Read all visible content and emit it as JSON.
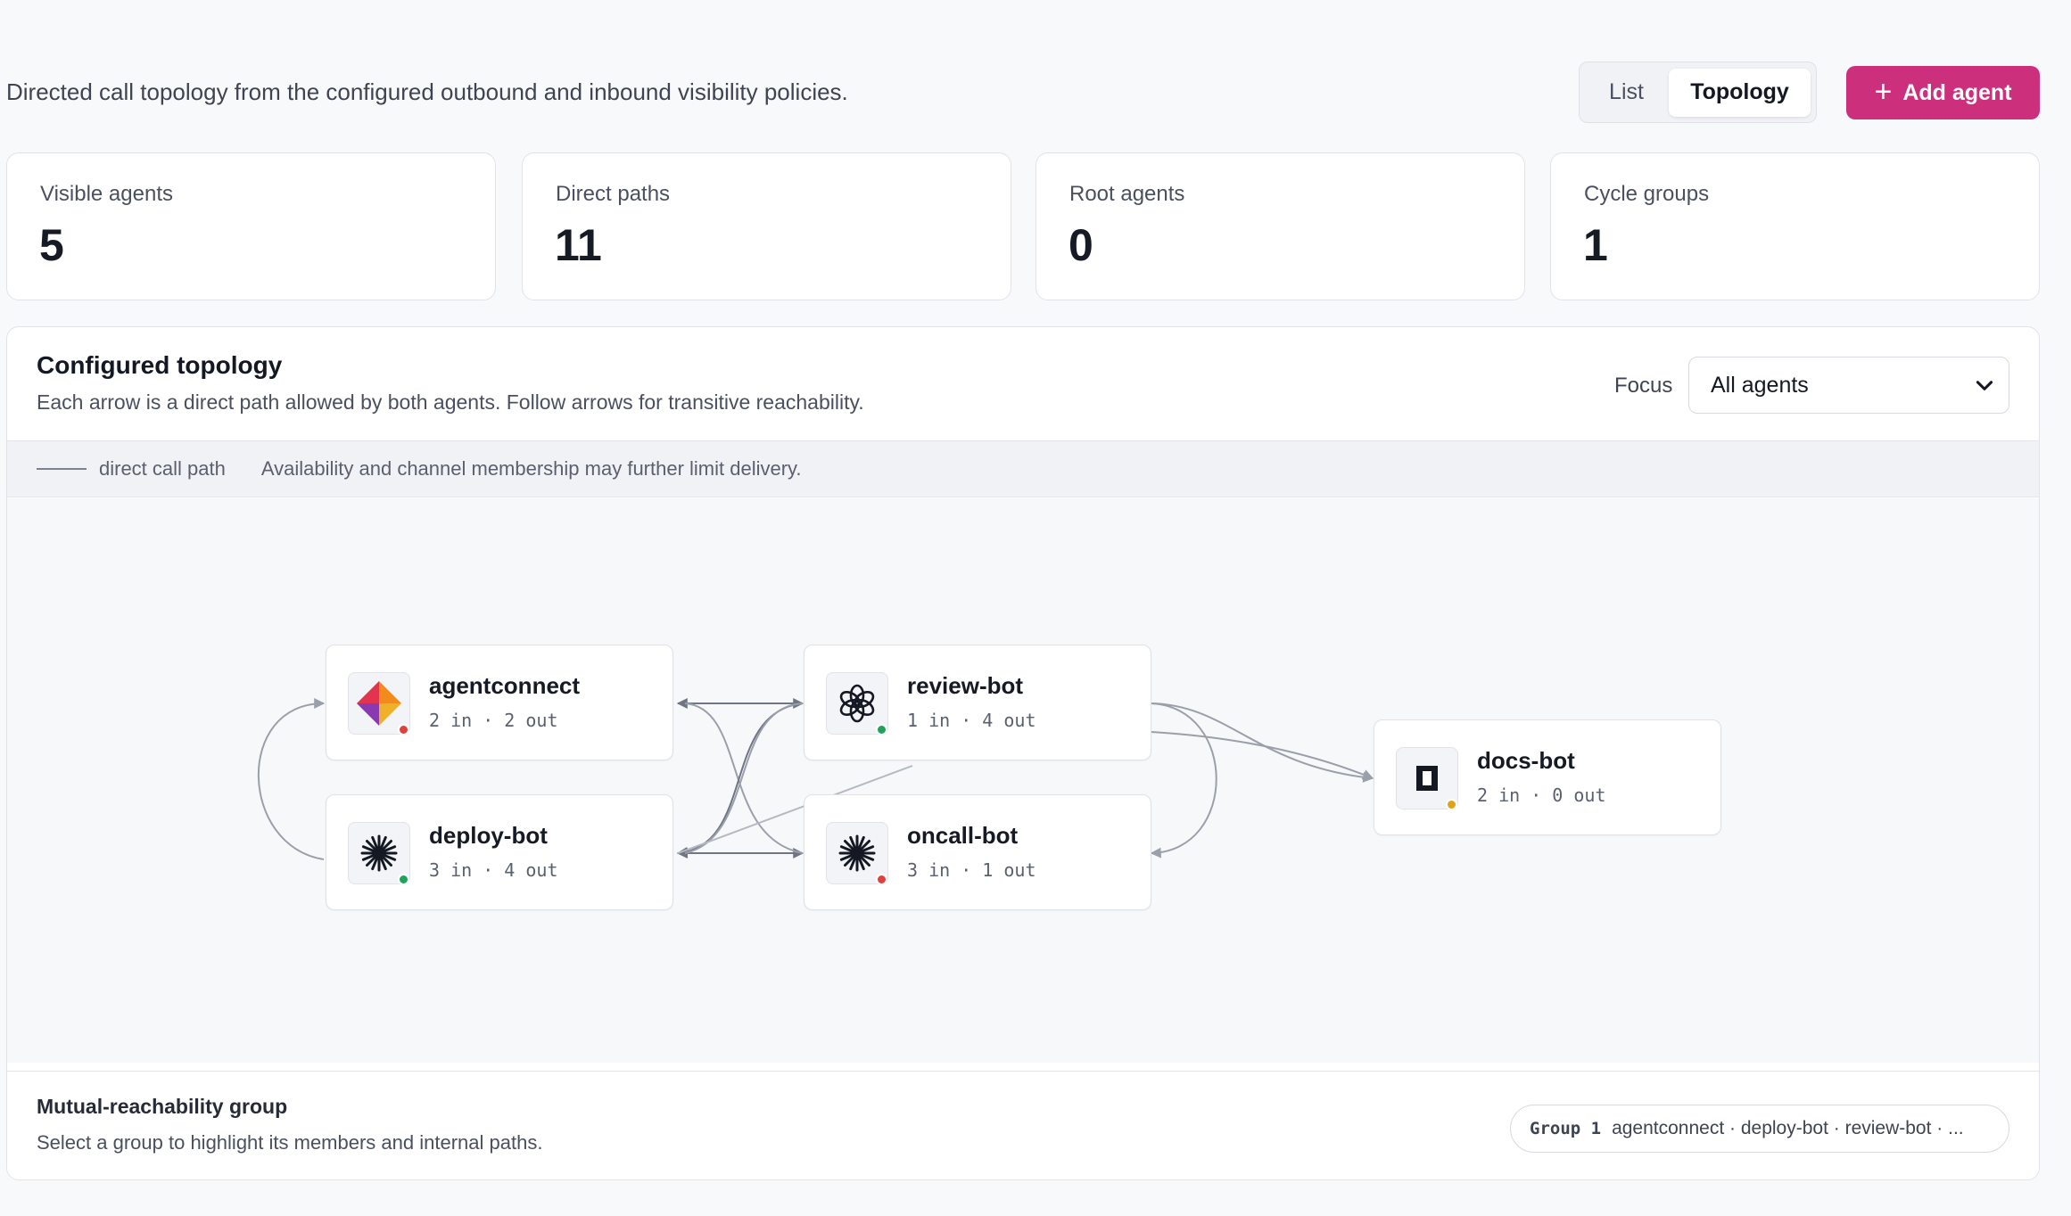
{
  "header": {
    "subtitle": "Directed call topology from the configured outbound and inbound visibility policies.",
    "view_toggle": {
      "list_label": "List",
      "topology_label": "Topology",
      "active": "Topology"
    },
    "add_agent_label": "Add agent",
    "accent_color": "#cc2f7b"
  },
  "stats": [
    {
      "label": "Visible agents",
      "value": "5"
    },
    {
      "label": "Direct paths",
      "value": "11"
    },
    {
      "label": "Root agents",
      "value": "0"
    },
    {
      "label": "Cycle groups",
      "value": "1"
    }
  ],
  "topology": {
    "title": "Configured topology",
    "description": "Each arrow is a direct path allowed by both agents. Follow arrows for transitive reachability.",
    "focus_label": "Focus",
    "focus_value": "All agents",
    "legend": {
      "line_label": "direct call path",
      "note": "Availability and channel membership may further limit delivery."
    },
    "nodes": [
      {
        "name": "agentconnect",
        "stats": "2 in · 2 out",
        "icon": "agentconnect-logo-icon",
        "status": "offline",
        "status_color": "#e0413a"
      },
      {
        "name": "review-bot",
        "stats": "1 in · 4 out",
        "icon": "openai-logo-icon",
        "status": "online",
        "status_color": "#1fa35a"
      },
      {
        "name": "deploy-bot",
        "stats": "3 in · 4 out",
        "icon": "asterisk-logo-icon",
        "status": "online",
        "status_color": "#1fa35a"
      },
      {
        "name": "oncall-bot",
        "stats": "3 in · 1 out",
        "icon": "asterisk-logo-icon",
        "status": "offline",
        "status_color": "#e0413a"
      },
      {
        "name": "docs-bot",
        "stats": "2 in · 0 out",
        "icon": "bracket-logo-icon",
        "status": "idle",
        "status_color": "#e2a11b"
      }
    ]
  },
  "groups": {
    "title": "Mutual-reachability group",
    "description": "Select a group to highlight its members and internal paths.",
    "items": [
      {
        "id": "Group 1",
        "members": "agentconnect · deploy-bot · review-bot · ..."
      }
    ]
  }
}
